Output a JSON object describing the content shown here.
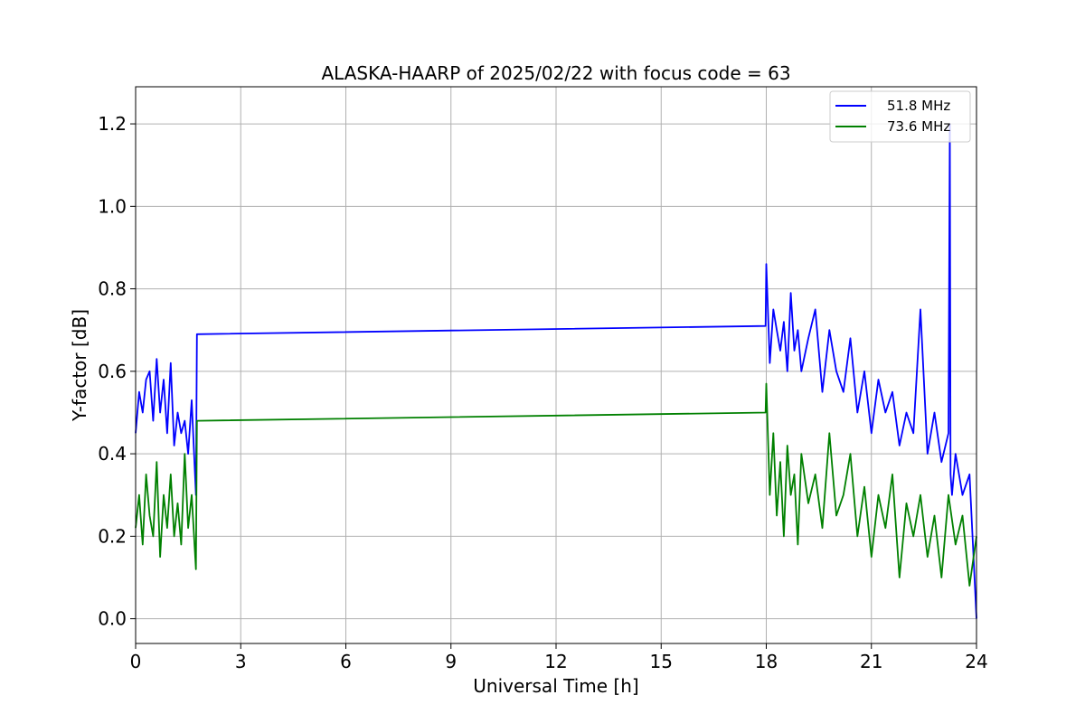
{
  "chart_data": {
    "type": "line",
    "title": "ALASKA-HAARP of 2025/02/22 with focus code = 63",
    "xlabel": "Universal Time [h]",
    "ylabel": "Y-factor [dB]",
    "xlim": [
      0,
      24
    ],
    "ylim": [
      -0.06,
      1.29
    ],
    "xticks": [
      0,
      3,
      6,
      9,
      12,
      15,
      18,
      21,
      24
    ],
    "xtick_labels": [
      "0",
      "3",
      "6",
      "9",
      "12",
      "15",
      "18",
      "21",
      "24"
    ],
    "yticks": [
      0.0,
      0.2,
      0.4,
      0.6,
      0.8,
      1.0,
      1.2
    ],
    "ytick_labels": [
      "0.0",
      "0.2",
      "0.4",
      "0.6",
      "0.8",
      "1.0",
      "1.2"
    ],
    "grid": true,
    "legend_position": "top-right",
    "series": [
      {
        "name": "51.8 MHz",
        "color": "#0000ff",
        "x": [
          0.0,
          0.1,
          0.2,
          0.3,
          0.4,
          0.5,
          0.6,
          0.7,
          0.8,
          0.9,
          1.0,
          1.1,
          1.2,
          1.3,
          1.4,
          1.5,
          1.6,
          1.72,
          1.75,
          17.98,
          18.0,
          18.1,
          18.2,
          18.3,
          18.4,
          18.5,
          18.6,
          18.7,
          18.8,
          18.9,
          19.0,
          19.2,
          19.4,
          19.6,
          19.8,
          20.0,
          20.2,
          20.4,
          20.6,
          20.8,
          21.0,
          21.2,
          21.4,
          21.6,
          21.8,
          22.0,
          22.2,
          22.4,
          22.6,
          22.8,
          23.0,
          23.2,
          23.24,
          23.26,
          23.3,
          23.4,
          23.6,
          23.8,
          24.0
        ],
        "y": [
          0.45,
          0.55,
          0.5,
          0.58,
          0.6,
          0.48,
          0.63,
          0.5,
          0.58,
          0.45,
          0.62,
          0.42,
          0.5,
          0.45,
          0.48,
          0.4,
          0.53,
          0.3,
          0.69,
          0.71,
          0.86,
          0.62,
          0.75,
          0.7,
          0.65,
          0.72,
          0.6,
          0.79,
          0.65,
          0.7,
          0.6,
          0.68,
          0.75,
          0.55,
          0.7,
          0.6,
          0.55,
          0.68,
          0.5,
          0.6,
          0.45,
          0.58,
          0.5,
          0.55,
          0.42,
          0.5,
          0.45,
          0.75,
          0.4,
          0.5,
          0.38,
          0.45,
          1.2,
          0.35,
          0.3,
          0.4,
          0.3,
          0.35,
          0.0
        ]
      },
      {
        "name": "73.6 MHz",
        "color": "#008000",
        "x": [
          0.0,
          0.1,
          0.2,
          0.3,
          0.4,
          0.5,
          0.6,
          0.7,
          0.8,
          0.9,
          1.0,
          1.1,
          1.2,
          1.3,
          1.4,
          1.5,
          1.6,
          1.72,
          1.75,
          17.98,
          18.0,
          18.1,
          18.2,
          18.3,
          18.4,
          18.5,
          18.6,
          18.7,
          18.8,
          18.9,
          19.0,
          19.2,
          19.4,
          19.6,
          19.8,
          20.0,
          20.2,
          20.4,
          20.6,
          20.8,
          21.0,
          21.2,
          21.4,
          21.6,
          21.8,
          22.0,
          22.2,
          22.4,
          22.6,
          22.8,
          23.0,
          23.2,
          23.4,
          23.6,
          23.8,
          24.0
        ],
        "y": [
          0.22,
          0.3,
          0.18,
          0.35,
          0.25,
          0.2,
          0.38,
          0.15,
          0.3,
          0.22,
          0.35,
          0.2,
          0.28,
          0.18,
          0.4,
          0.22,
          0.3,
          0.12,
          0.48,
          0.5,
          0.57,
          0.3,
          0.45,
          0.25,
          0.38,
          0.2,
          0.42,
          0.3,
          0.35,
          0.18,
          0.4,
          0.28,
          0.35,
          0.22,
          0.45,
          0.25,
          0.3,
          0.4,
          0.2,
          0.32,
          0.15,
          0.3,
          0.22,
          0.35,
          0.1,
          0.28,
          0.2,
          0.3,
          0.15,
          0.25,
          0.1,
          0.3,
          0.18,
          0.25,
          0.08,
          0.2
        ]
      }
    ]
  }
}
